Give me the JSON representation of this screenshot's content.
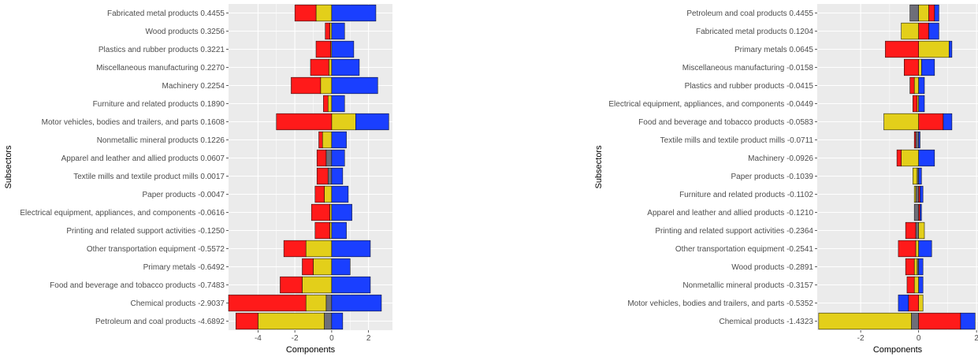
{
  "colors": {
    "panel_background": "#EBEBEB",
    "grid": "#FFFFFF",
    "gray": "#6E6E78",
    "yellow": "#E3CF1A",
    "red": "#FF1A1A",
    "blue": "#1A3FFF"
  },
  "chart_data": [
    {
      "type": "bar",
      "orientation": "horizontal",
      "stacking": "diverging",
      "xlabel": "Components",
      "ylabel": "Subsectors",
      "xlim": [
        -5.6,
        3.3
      ],
      "xticks": [
        -4,
        -2,
        0,
        2
      ],
      "xtick_labels": [
        "-4",
        "-2",
        "0",
        "2"
      ],
      "grid": true,
      "legend": "none",
      "categories": [
        "Fabricated metal products  0.4455",
        "Wood products  0.3256",
        "Plastics and rubber products  0.3221",
        "Miscellaneous manufacturing  0.2270",
        "Machinery  0.2254",
        "Furniture and related products  0.1890",
        "Motor vehicles, bodies and trailers, and parts  0.1608",
        "Nonmetallic mineral products  0.1226",
        "Apparel and leather and allied products  0.0607",
        "Textile mills and textile product mills  0.0017",
        "Paper products -0.0047",
        "Electrical equipment, appliances, and components -0.0616",
        "Printing and related support activities -0.1250",
        "Other transportation equipment -0.5572",
        "Primary metals -0.6492",
        "Food and beverage and tobacco products -0.7483",
        "Chemical products -2.9037",
        "Petroleum and coal products -4.6892"
      ],
      "series": [
        {
          "color": "gray",
          "values": [
            0,
            0,
            0,
            0,
            0,
            0,
            0,
            0,
            -0.3,
            -0.2,
            0,
            0,
            0,
            0,
            0,
            0,
            -0.3,
            -0.4
          ]
        },
        {
          "color": "yellow",
          "values": [
            -0.85,
            -0.1,
            -0.05,
            -0.15,
            -0.6,
            -0.2,
            1.3,
            -0.5,
            0,
            0,
            -0.4,
            -0.1,
            -0.1,
            -1.4,
            -1.0,
            -1.6,
            -1.1,
            -3.6
          ]
        },
        {
          "color": "red",
          "values": [
            -1.15,
            -0.25,
            -0.8,
            -1.0,
            -1.6,
            -0.25,
            -3.0,
            -0.2,
            -0.5,
            -0.6,
            -0.5,
            -1.0,
            -0.8,
            -1.2,
            -0.6,
            -1.2,
            -4.2,
            -1.2
          ]
        },
        {
          "color": "blue",
          "values": [
            2.4,
            0.7,
            1.2,
            1.5,
            2.5,
            0.7,
            1.8,
            0.8,
            0.7,
            0.6,
            0.9,
            1.1,
            0.8,
            2.1,
            1.0,
            2.1,
            2.7,
            0.6
          ]
        }
      ]
    },
    {
      "type": "bar",
      "orientation": "horizontal",
      "stacking": "diverging",
      "xlabel": "Components",
      "ylabel": "Subsectors",
      "xlim": [
        -3.5,
        2.05
      ],
      "xticks": [
        -2,
        0,
        2
      ],
      "xtick_labels": [
        "-2",
        "0",
        "2"
      ],
      "grid": true,
      "legend": "none",
      "categories": [
        "Petroleum and coal products  0.4455",
        "Fabricated metal products  0.1204",
        "Primary metals  0.0645",
        "Miscellaneous manufacturing -0.0158",
        "Plastics and rubber products -0.0415",
        "Electrical equipment, appliances, and components -0.0449",
        "Food and beverage and tobacco products -0.0583",
        "Textile mills and textile product mills -0.0711",
        "Machinery -0.0926",
        "Paper products -0.1039",
        "Furniture and related products -0.1102",
        "Apparel and leather and allied products -0.1210",
        "Printing and related support activities -0.2364",
        "Other transportation equipment -0.2541",
        "Wood products -0.2891",
        "Nonmetallic mineral products -0.3157",
        "Motor vehicles, bodies and trailers, and parts -0.5352",
        "Chemical products -1.4323"
      ],
      "series": [
        {
          "color": "gray",
          "values": [
            -0.3,
            0,
            0,
            0,
            0,
            0,
            0,
            -0.1,
            0,
            -0.05,
            -0.1,
            -0.15,
            -0.1,
            0,
            -0.05,
            0,
            0,
            -0.25
          ]
        },
        {
          "color": "yellow",
          "values": [
            0.35,
            -0.6,
            1.05,
            0.1,
            -0.15,
            -0.05,
            -1.2,
            0,
            -0.6,
            -0.15,
            -0.05,
            0,
            0.2,
            -0.1,
            -0.1,
            -0.15,
            0.15,
            -3.2
          ]
        },
        {
          "color": "red",
          "values": [
            0.2,
            0.35,
            -1.15,
            -0.5,
            -0.15,
            -0.15,
            0.85,
            -0.05,
            -0.15,
            0,
            0.05,
            0.05,
            -0.35,
            -0.6,
            -0.3,
            -0.25,
            -0.35,
            1.45
          ]
        },
        {
          "color": "blue",
          "values": [
            0.15,
            0.35,
            0.1,
            0.45,
            0.2,
            0.2,
            0.3,
            0.05,
            0.55,
            0.1,
            0.1,
            0.05,
            0,
            0.45,
            0.15,
            0.15,
            -0.35,
            0.5
          ]
        }
      ]
    }
  ]
}
